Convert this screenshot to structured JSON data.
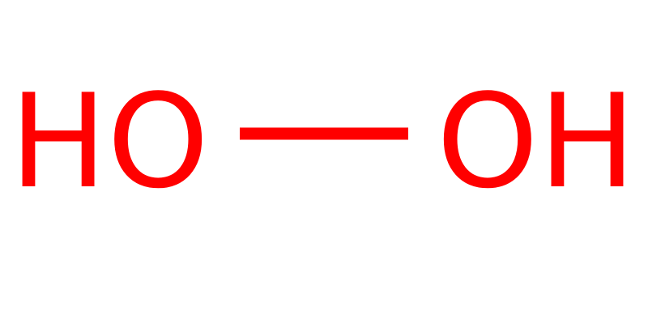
{
  "structure": {
    "atoms": [
      {
        "label": "HO"
      },
      {
        "label": "OH"
      }
    ],
    "bonds": [
      {
        "from": 0,
        "to": 1,
        "order": 1
      }
    ]
  },
  "colors": {
    "atom_color": "#ff0000",
    "bond_color": "#ff0000",
    "background": "#ffffff"
  }
}
